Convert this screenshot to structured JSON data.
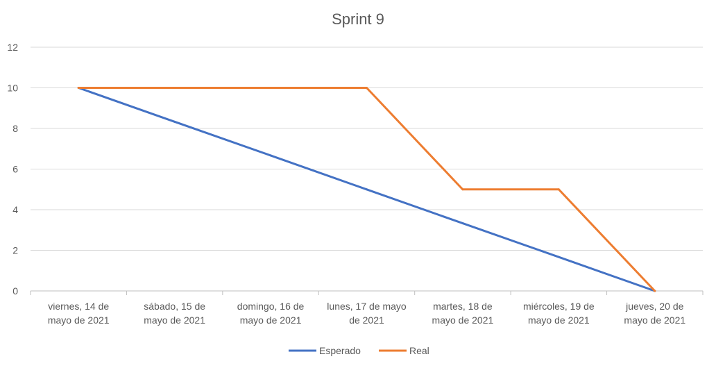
{
  "chart_data": {
    "type": "line",
    "title": "Sprint 9",
    "xlabel": "",
    "ylabel": "",
    "categories": [
      [
        "viernes, 14 de",
        "mayo de 2021"
      ],
      [
        "sábado, 15 de",
        "mayo de 2021"
      ],
      [
        "domingo, 16 de",
        "mayo de 2021"
      ],
      [
        "lunes, 17 de mayo",
        "de 2021"
      ],
      [
        "martes, 18 de",
        "mayo de 2021"
      ],
      [
        "miércoles, 19 de",
        "mayo de 2021"
      ],
      [
        "jueves, 20 de",
        "mayo de 2021"
      ]
    ],
    "ylim": [
      0,
      12
    ],
    "yticks": [
      0,
      2,
      4,
      6,
      8,
      10,
      12
    ],
    "grid": true,
    "legend_position": "bottom",
    "series": [
      {
        "name": "Esperado",
        "color": "#4472c4",
        "values": [
          10,
          8.33,
          6.67,
          5,
          3.33,
          1.67,
          0
        ]
      },
      {
        "name": "Real",
        "color": "#ed7d31",
        "values": [
          10,
          10,
          10,
          10,
          5,
          5,
          0
        ]
      }
    ]
  }
}
